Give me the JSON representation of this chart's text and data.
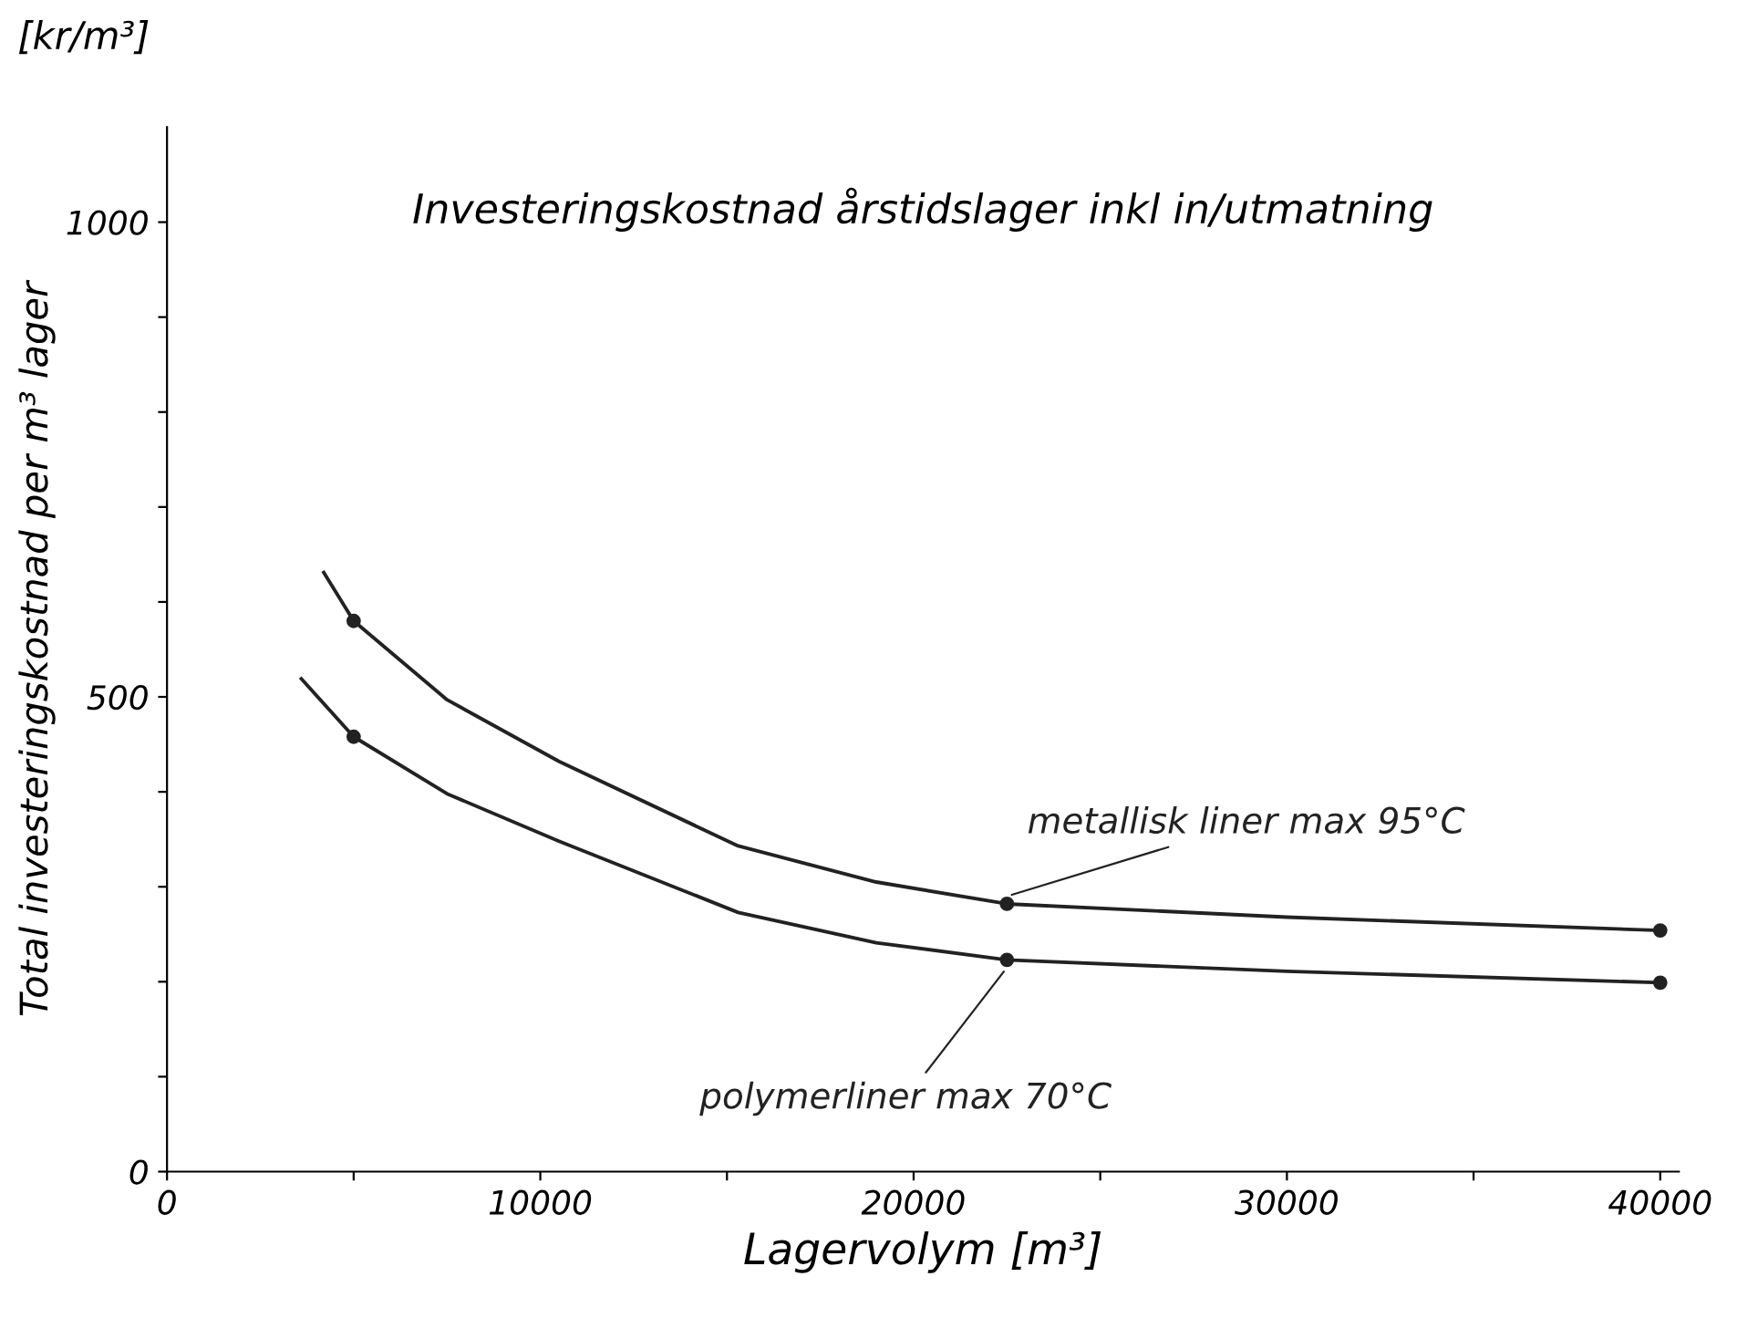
{
  "chart_data": {
    "type": "line",
    "title": "Investeringskostnad årstidslager inkl in/utmatning",
    "xlabel": "Lagervolym [m³]",
    "ylabel": "Total investeringskostnad per m³ lager",
    "annotations": [
      "[kr/m³]"
    ],
    "series": [
      {
        "name": "metallisk liner max 95°C",
        "color": "#222222",
        "x": [
          4200,
          5000,
          7500,
          10500,
          15300,
          19000,
          22500,
          30000,
          40000
        ],
        "values": [
          631,
          580,
          497,
          432,
          343,
          305,
          282,
          268,
          254
        ]
      },
      {
        "name": "polymerliner max 70°C",
        "color": "#222222",
        "x": [
          3600,
          5000,
          7500,
          10500,
          15300,
          19000,
          22500,
          30000,
          40000
        ],
        "values": [
          519,
          458,
          398,
          348,
          273,
          241,
          223,
          211,
          199
        ]
      },
      {
        "type": "scatter",
        "color": "#222222",
        "marker": "circle",
        "x": [
          5000,
          22500,
          40000
        ],
        "values": [
          580,
          282,
          254
        ]
      },
      {
        "type": "scatter",
        "color": "#222222",
        "marker": "circle",
        "x": [
          5000,
          22500,
          40000
        ],
        "values": [
          458,
          223,
          199
        ]
      }
    ],
    "marker": "none",
    "line_style": "solid",
    "grid": false,
    "legend": false,
    "xlim": [
      0,
      40500
    ],
    "ylim": [
      0,
      1100
    ],
    "xticks": [
      0,
      {
        "value": 5000,
        "label": null
      },
      10000,
      {
        "value": 15000,
        "label": null
      },
      20000,
      {
        "value": 25000,
        "label": null
      },
      30000,
      {
        "value": 35000,
        "label": null
      },
      40000
    ],
    "yticks": [
      0,
      {
        "value": 100,
        "label": null
      },
      {
        "value": 200,
        "label": null
      },
      {
        "value": 300,
        "label": null
      },
      {
        "value": 400,
        "label": null
      },
      500,
      {
        "value": 600,
        "label": null
      },
      {
        "value": 700,
        "label": null
      },
      {
        "value": 800,
        "label": null
      },
      {
        "value": 900,
        "label": null
      },
      1000
    ]
  }
}
